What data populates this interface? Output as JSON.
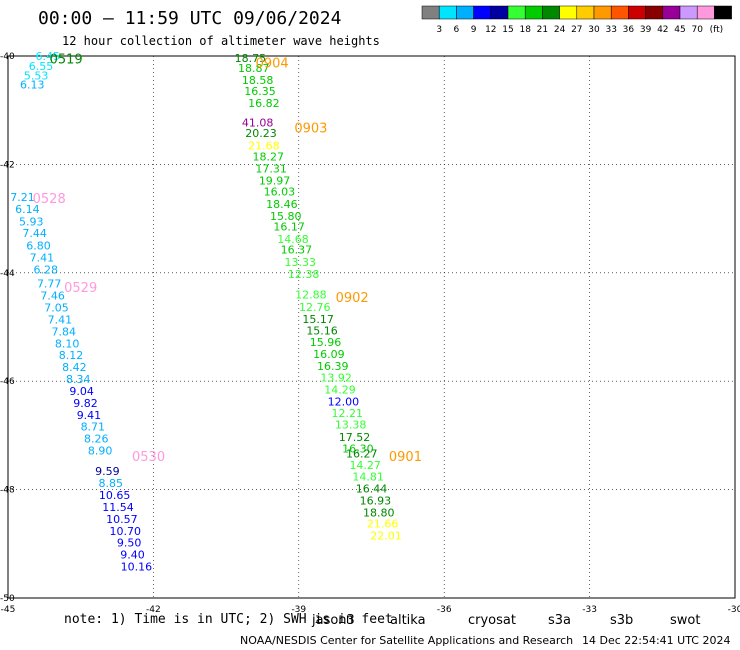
{
  "title": "00:00 – 11:59 UTC 09/06/2024",
  "subtitle": "12 hour collection of altimeter wave heights",
  "color_scale": {
    "unit_label": "(ft)",
    "colors": [
      "#808080",
      "#00e5ff",
      "#00b0ff",
      "#0000ff",
      "#0000a0",
      "#33ff33",
      "#00cc00",
      "#008800",
      "#ffff00",
      "#ffcc00",
      "#ff9900",
      "#ff5500",
      "#cc0000",
      "#880000",
      "#990099",
      "#cc99ff",
      "#ff99dd",
      "#000000"
    ],
    "labels": [
      "3",
      "6",
      "9",
      "12",
      "15",
      "18",
      "21",
      "24",
      "27",
      "30",
      "33",
      "36",
      "39",
      "42",
      "45",
      "70"
    ]
  },
  "axes": {
    "lon_labels": [
      "-45",
      "-42",
      "-39",
      "-36",
      "-33",
      "-30"
    ],
    "lat_labels": [
      "-40",
      "-42",
      "-44",
      "-46",
      "-48",
      "-50"
    ]
  },
  "chart_data": {
    "type": "scatter",
    "x_range": [
      -45,
      -30
    ],
    "y_range": [
      -50,
      -40
    ],
    "tracks": [
      {
        "label": "0519",
        "label_color": "#008800",
        "points": [
          {
            "x": -44.18,
            "y": -40.0,
            "v": "6.45",
            "c": "#00e5ff"
          },
          {
            "x": -44.32,
            "y": -40.18,
            "v": "6.55",
            "c": "#00e5ff"
          },
          {
            "x": -44.42,
            "y": -40.36,
            "v": "5.53",
            "c": "#00e5ff"
          },
          {
            "x": -44.5,
            "y": -40.53,
            "v": "6.13",
            "c": "#00b0ff"
          }
        ]
      },
      {
        "label": "0904",
        "label_color": "#ff9900",
        "points": [
          {
            "x": -40.0,
            "y": -40.04,
            "v": "18.75",
            "c": "#008800"
          },
          {
            "x": -39.93,
            "y": -40.22,
            "v": "18.87",
            "c": "#00cc00"
          },
          {
            "x": -39.85,
            "y": -40.44,
            "v": "18.58",
            "c": "#00cc00"
          },
          {
            "x": -39.8,
            "y": -40.65,
            "v": "16.35",
            "c": "#00cc00"
          },
          {
            "x": -39.72,
            "y": -40.87,
            "v": "16.82",
            "c": "#00cc00"
          }
        ]
      },
      {
        "label": "0903",
        "label_color": "#ff9900",
        "points": [
          {
            "x": -39.85,
            "y": -41.23,
            "v": "41.08",
            "c": "#990099"
          },
          {
            "x": -39.78,
            "y": -41.42,
            "v": "20.23",
            "c": "#008800"
          },
          {
            "x": -39.72,
            "y": -41.65,
            "v": "21.68",
            "c": "#ffff00"
          },
          {
            "x": -39.63,
            "y": -41.85,
            "v": "18.27",
            "c": "#00cc00"
          },
          {
            "x": -39.57,
            "y": -42.08,
            "v": "17.31",
            "c": "#00cc00"
          },
          {
            "x": -39.5,
            "y": -42.3,
            "v": "19.97",
            "c": "#00cc00"
          },
          {
            "x": -39.4,
            "y": -42.5,
            "v": "16.03",
            "c": "#00cc00"
          },
          {
            "x": -39.35,
            "y": -42.73,
            "v": "18.46",
            "c": "#00cc00"
          },
          {
            "x": -39.27,
            "y": -42.95,
            "v": "15.80",
            "c": "#00cc00"
          },
          {
            "x": -39.2,
            "y": -43.15,
            "v": "16.17",
            "c": "#00cc00"
          },
          {
            "x": -39.12,
            "y": -43.38,
            "v": "14.68",
            "c": "#33ff33"
          },
          {
            "x": -39.05,
            "y": -43.57,
            "v": "16.37",
            "c": "#00cc00"
          },
          {
            "x": -38.97,
            "y": -43.8,
            "v": "13.33",
            "c": "#33ff33"
          },
          {
            "x": -38.9,
            "y": -44.02,
            "v": "12.38",
            "c": "#33ff33"
          }
        ]
      },
      {
        "label": "0902",
        "label_color": "#ff9900",
        "points": [
          {
            "x": -38.75,
            "y": -44.4,
            "v": "12.88",
            "c": "#33ff33"
          },
          {
            "x": -38.67,
            "y": -44.63,
            "v": "12.76",
            "c": "#33ff33"
          },
          {
            "x": -38.6,
            "y": -44.85,
            "v": "15.17",
            "c": "#008800"
          },
          {
            "x": -38.52,
            "y": -45.06,
            "v": "15.16",
            "c": "#008800"
          },
          {
            "x": -38.45,
            "y": -45.28,
            "v": "15.96",
            "c": "#00cc00"
          },
          {
            "x": -38.38,
            "y": -45.5,
            "v": "16.09",
            "c": "#00cc00"
          },
          {
            "x": -38.3,
            "y": -45.72,
            "v": "16.39",
            "c": "#00cc00"
          },
          {
            "x": -38.23,
            "y": -45.93,
            "v": "13.92",
            "c": "#33ff33"
          },
          {
            "x": -38.15,
            "y": -46.15,
            "v": "14.29",
            "c": "#33ff33"
          },
          {
            "x": -38.08,
            "y": -46.37,
            "v": "12.00",
            "c": "#0000ff"
          },
          {
            "x": -38.0,
            "y": -46.59,
            "v": "12.21",
            "c": "#33ff33"
          },
          {
            "x": -37.93,
            "y": -46.8,
            "v": "13.38",
            "c": "#33ff33"
          },
          {
            "x": -37.85,
            "y": -47.03,
            "v": "17.52",
            "c": "#008800"
          },
          {
            "x": -37.78,
            "y": -47.24,
            "v": "16.30",
            "c": "#00cc00"
          },
          {
            "x": -37.7,
            "y": -47.33,
            "v": "16.27",
            "c": "#008800"
          },
          {
            "x": -37.63,
            "y": -47.55,
            "v": "14.27",
            "c": "#33ff33"
          },
          {
            "x": -37.57,
            "y": -47.76,
            "v": "14.81",
            "c": "#33ff33"
          },
          {
            "x": -37.5,
            "y": -47.98,
            "v": "16.44",
            "c": "#008800"
          },
          {
            "x": -37.42,
            "y": -48.2,
            "v": "16.93",
            "c": "#008800"
          },
          {
            "x": -37.35,
            "y": -48.42,
            "v": "18.80",
            "c": "#008800"
          },
          {
            "x": -37.27,
            "y": -48.63,
            "v": "21.66",
            "c": "#ffff00"
          },
          {
            "x": -37.2,
            "y": -48.85,
            "v": "22.01",
            "c": "#ffff00"
          }
        ]
      },
      {
        "label": "0901",
        "label_color": "#ff9900",
        "points": []
      },
      {
        "label": "0528",
        "label_color": "#ff99dd",
        "points": [
          {
            "x": -44.7,
            "y": -42.6,
            "v": "7.21",
            "c": "#00b0ff"
          },
          {
            "x": -44.6,
            "y": -42.82,
            "v": "6.14",
            "c": "#00b0ff"
          },
          {
            "x": -44.52,
            "y": -43.05,
            "v": "5.93",
            "c": "#00b0ff"
          },
          {
            "x": -44.45,
            "y": -43.27,
            "v": "7.44",
            "c": "#00b0ff"
          },
          {
            "x": -44.37,
            "y": -43.5,
            "v": "6.80",
            "c": "#00b0ff"
          },
          {
            "x": -44.3,
            "y": -43.72,
            "v": "7.41",
            "c": "#00b0ff"
          },
          {
            "x": -44.22,
            "y": -43.94,
            "v": "6.28",
            "c": "#00b0ff"
          }
        ]
      },
      {
        "label": "0529",
        "label_color": "#ff99dd",
        "points": [
          {
            "x": -44.15,
            "y": -44.2,
            "v": "7.77",
            "c": "#00b0ff"
          },
          {
            "x": -44.08,
            "y": -44.42,
            "v": "7.46",
            "c": "#00b0ff"
          },
          {
            "x": -44.0,
            "y": -44.64,
            "v": "7.05",
            "c": "#00b0ff"
          },
          {
            "x": -43.93,
            "y": -44.86,
            "v": "7.41",
            "c": "#00b0ff"
          },
          {
            "x": -43.85,
            "y": -45.08,
            "v": "7.84",
            "c": "#00b0ff"
          },
          {
            "x": -43.78,
            "y": -45.3,
            "v": "8.10",
            "c": "#00b0ff"
          },
          {
            "x": -43.7,
            "y": -45.52,
            "v": "8.12",
            "c": "#00b0ff"
          },
          {
            "x": -43.63,
            "y": -45.74,
            "v": "8.42",
            "c": "#00b0ff"
          },
          {
            "x": -43.55,
            "y": -45.96,
            "v": "8.34",
            "c": "#00b0ff"
          },
          {
            "x": -43.48,
            "y": -46.18,
            "v": "9.04",
            "c": "#0000ff"
          },
          {
            "x": -43.4,
            "y": -46.4,
            "v": "9.82",
            "c": "#0000ff"
          },
          {
            "x": -43.33,
            "y": -46.62,
            "v": "9.41",
            "c": "#0000ff"
          },
          {
            "x": -43.25,
            "y": -46.84,
            "v": "8.71",
            "c": "#00b0ff"
          },
          {
            "x": -43.18,
            "y": -47.06,
            "v": "8.26",
            "c": "#00b0ff"
          },
          {
            "x": -43.1,
            "y": -47.28,
            "v": "8.90",
            "c": "#00b0ff"
          }
        ]
      },
      {
        "label": "0530",
        "label_color": "#ff99dd",
        "points": [
          {
            "x": -42.95,
            "y": -47.66,
            "v": "9.59",
            "c": "#0000a0"
          },
          {
            "x": -42.88,
            "y": -47.88,
            "v": "8.85",
            "c": "#00b0ff"
          },
          {
            "x": -42.8,
            "y": -48.1,
            "v": "10.65",
            "c": "#0000ff"
          },
          {
            "x": -42.73,
            "y": -48.32,
            "v": "11.54",
            "c": "#0000ff"
          },
          {
            "x": -42.65,
            "y": -48.54,
            "v": "10.57",
            "c": "#0000ff"
          },
          {
            "x": -42.58,
            "y": -48.76,
            "v": "10.70",
            "c": "#0000ff"
          },
          {
            "x": -42.5,
            "y": -48.98,
            "v": "9.50",
            "c": "#0000ff"
          },
          {
            "x": -42.43,
            "y": -49.2,
            "v": "9.40",
            "c": "#0000ff"
          },
          {
            "x": -42.35,
            "y": -49.42,
            "v": "10.16",
            "c": "#0000ff"
          }
        ]
      }
    ]
  },
  "note": "note: 1) Time is in UTC; 2) SWH is in feet",
  "satellites": [
    {
      "name": "jason3",
      "color": "#008800"
    },
    {
      "name": "altika",
      "color": "#ff9900"
    },
    {
      "name": "cryosat",
      "color": "#ff0000"
    },
    {
      "name": "s3a",
      "color": "#880000"
    },
    {
      "name": "s3b",
      "color": "#cc99ff"
    },
    {
      "name": "swot",
      "color": "#ff99dd"
    }
  ],
  "credit": "NOAA/NESDIS Center for Satellite Applications and Research",
  "timestamp": "14 Dec 22:54:41 UTC 2024"
}
